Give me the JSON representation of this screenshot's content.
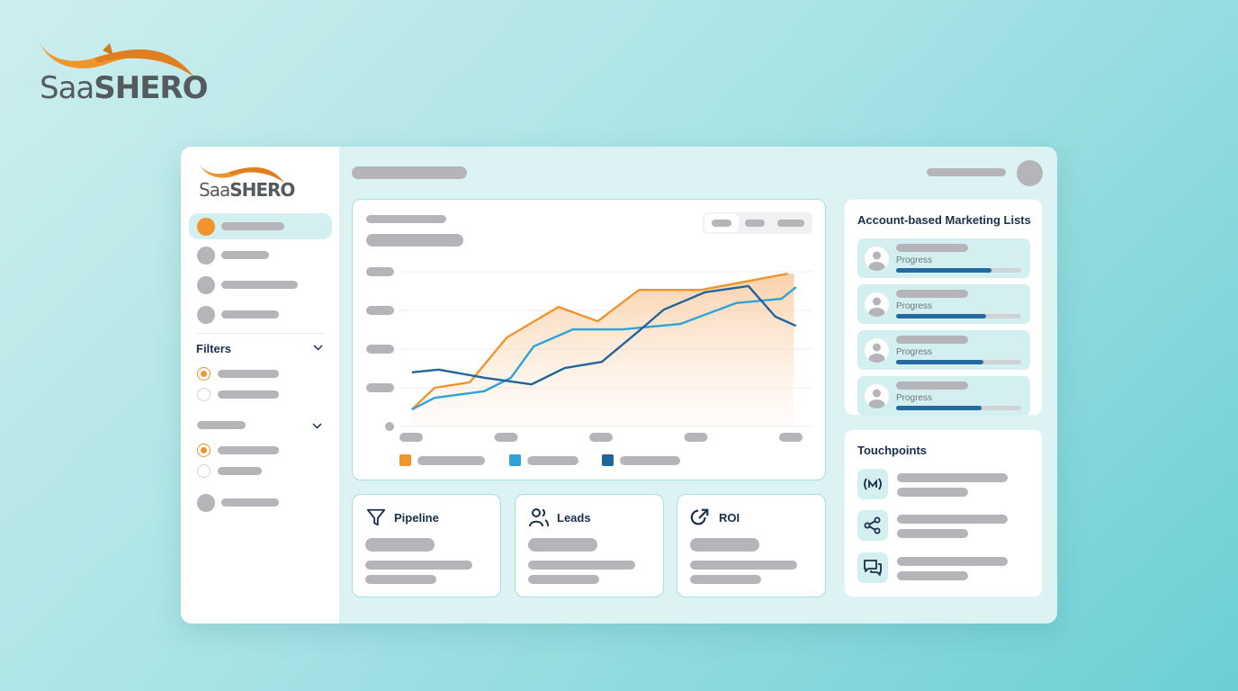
{
  "brand": {
    "name_light": "Saa",
    "name_bold": "SHERO",
    "accent": "#f0952b"
  },
  "sidebar": {
    "filters_label": "Filters",
    "nav_items": [
      {
        "active": true
      },
      {
        "active": false
      },
      {
        "active": false
      },
      {
        "active": false
      }
    ],
    "filter_groups": [
      {
        "selected": 0
      },
      {
        "selected": 0
      }
    ]
  },
  "abm": {
    "title": "Account-based Marketing Lists",
    "items": [
      {
        "progress_label": "Progress",
        "progress": 76
      },
      {
        "progress_label": "Progress",
        "progress": 72
      },
      {
        "progress_label": "Progress",
        "progress": 70
      },
      {
        "progress_label": "Progress",
        "progress": 68
      }
    ]
  },
  "touchpoints": {
    "title": "Touchpoints",
    "items": [
      {
        "icon": "broadcast-icon"
      },
      {
        "icon": "share-icon"
      },
      {
        "icon": "chat-icon"
      }
    ]
  },
  "kpis": [
    {
      "label": "Pipeline",
      "icon": "funnel-icon"
    },
    {
      "label": "Leads",
      "icon": "users-icon"
    },
    {
      "label": "ROI",
      "icon": "growth-arrow-icon"
    }
  ],
  "colors": {
    "orange": "#f0952b",
    "light_blue": "#2ea3d6",
    "dark_blue": "#22659c",
    "progress": "#24699f"
  },
  "chart_data": {
    "type": "line",
    "grid": true,
    "xlim": [
      0,
      20
    ],
    "ylim": [
      0,
      4
    ],
    "legend": "bottom-left",
    "series": [
      {
        "color": "#f0952b",
        "area": true,
        "x": [
          0.6,
          1.7,
          3.4,
          5.2,
          7.7,
          9.6,
          11.6,
          14.6,
          18.8
        ],
        "y": [
          0.44,
          1.0,
          1.14,
          2.3,
          3.09,
          2.72,
          3.53,
          3.53,
          3.95
        ]
      },
      {
        "color": "#2ea3d6",
        "x": [
          0.6,
          1.7,
          4.1,
          5.4,
          6.5,
          8.4,
          10.8,
          13.6,
          16.3,
          18.5,
          19.2
        ],
        "y": [
          0.44,
          0.74,
          0.91,
          1.26,
          2.07,
          2.51,
          2.51,
          2.65,
          3.19,
          3.3,
          3.6
        ]
      },
      {
        "color": "#22659c",
        "x": [
          0.6,
          1.9,
          4.1,
          6.4,
          8.0,
          9.8,
          11.6,
          12.8,
          14.8,
          16.9,
          18.2,
          19.2
        ],
        "y": [
          1.4,
          1.47,
          1.26,
          1.09,
          1.51,
          1.67,
          2.47,
          3.02,
          3.47,
          3.63,
          2.84,
          2.6
        ]
      }
    ]
  }
}
